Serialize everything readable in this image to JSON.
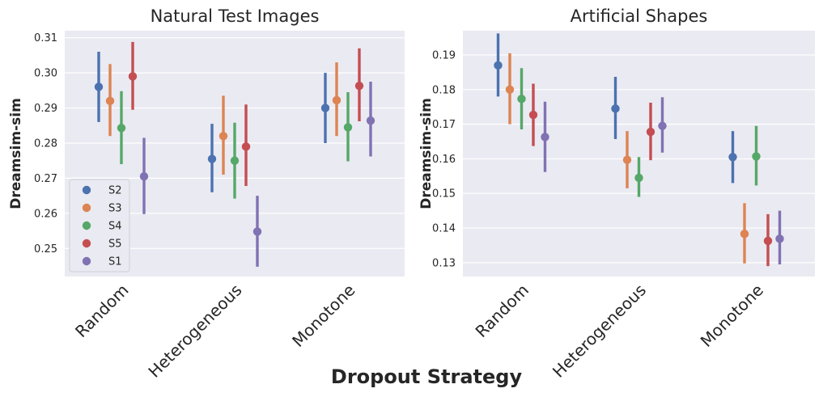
{
  "figure": {
    "xlabel": "Dropout Strategy"
  },
  "chart_data": [
    {
      "type": "scatter",
      "title": "Natural Test Images",
      "xlabel": "",
      "ylabel": "Dreamsim-sim",
      "categories": [
        "Random",
        "Heterogeneous",
        "Monotone"
      ],
      "ylim": [
        0.242,
        0.312
      ],
      "yticks": [
        0.25,
        0.26,
        0.27,
        0.28,
        0.29,
        0.3,
        0.31
      ],
      "ytick_labels": [
        "0.25",
        "0.26",
        "0.27",
        "0.28",
        "0.29",
        "0.30",
        "0.31"
      ],
      "grid": true,
      "legend": "lower-left",
      "series": [
        {
          "name": "S2",
          "color": "#4c72b0",
          "values": [
            0.296,
            0.2755,
            0.29
          ],
          "ci_low": [
            0.286,
            0.266,
            0.28
          ],
          "ci_high": [
            0.306,
            0.2855,
            0.3
          ]
        },
        {
          "name": "S3",
          "color": "#dd8452",
          "values": [
            0.292,
            0.282,
            0.2922
          ],
          "ci_low": [
            0.282,
            0.271,
            0.282
          ],
          "ci_high": [
            0.3025,
            0.2935,
            0.303
          ]
        },
        {
          "name": "S4",
          "color": "#55a868",
          "values": [
            0.2843,
            0.275,
            0.2845
          ],
          "ci_low": [
            0.274,
            0.2642,
            0.2748
          ],
          "ci_high": [
            0.2948,
            0.2858,
            0.2945
          ]
        },
        {
          "name": "S5",
          "color": "#c44e52",
          "values": [
            0.299,
            0.279,
            0.2963
          ],
          "ci_low": [
            0.2895,
            0.2678,
            0.2862
          ],
          "ci_high": [
            0.3088,
            0.291,
            0.307
          ]
        },
        {
          "name": "S1",
          "color": "#8172b3",
          "values": [
            0.2705,
            0.2548,
            0.2864
          ],
          "ci_low": [
            0.2598,
            0.2448,
            0.2762
          ],
          "ci_high": [
            0.2815,
            0.265,
            0.2975
          ]
        }
      ]
    },
    {
      "type": "scatter",
      "title": "Artificial Shapes",
      "xlabel": "",
      "ylabel": "Dreamsim-sim",
      "categories": [
        "Random",
        "Heterogeneous",
        "Monotone"
      ],
      "ylim": [
        0.126,
        0.197
      ],
      "yticks": [
        0.13,
        0.14,
        0.15,
        0.16,
        0.17,
        0.18,
        0.19
      ],
      "ytick_labels": [
        "0.13",
        "0.14",
        "0.15",
        "0.16",
        "0.17",
        "0.18",
        "0.19"
      ],
      "grid": true,
      "legend": "none",
      "series": [
        {
          "name": "S2",
          "color": "#4c72b0",
          "values": [
            0.187,
            0.1745,
            0.1605
          ],
          "ci_low": [
            0.178,
            0.1657,
            0.153
          ],
          "ci_high": [
            0.1962,
            0.1837,
            0.168
          ]
        },
        {
          "name": "S3",
          "color": "#dd8452",
          "values": [
            0.18,
            0.1597,
            0.1383
          ],
          "ci_low": [
            0.17,
            0.1515,
            0.1298
          ],
          "ci_high": [
            0.1905,
            0.168,
            0.1472
          ]
        },
        {
          "name": "S4",
          "color": "#55a868",
          "values": [
            0.1773,
            0.1545,
            0.1607
          ],
          "ci_low": [
            0.1685,
            0.149,
            0.1523
          ],
          "ci_high": [
            0.1862,
            0.1605,
            0.1695
          ]
        },
        {
          "name": "S5",
          "color": "#c44e52",
          "values": [
            0.1727,
            0.1678,
            0.1363
          ],
          "ci_low": [
            0.1637,
            0.1596,
            0.129
          ],
          "ci_high": [
            0.1817,
            0.1762,
            0.144
          ]
        },
        {
          "name": "S1",
          "color": "#8172b3",
          "values": [
            0.1663,
            0.1695,
            0.1369
          ],
          "ci_low": [
            0.1562,
            0.1618,
            0.1295
          ],
          "ci_high": [
            0.1765,
            0.1778,
            0.145
          ]
        }
      ]
    }
  ]
}
